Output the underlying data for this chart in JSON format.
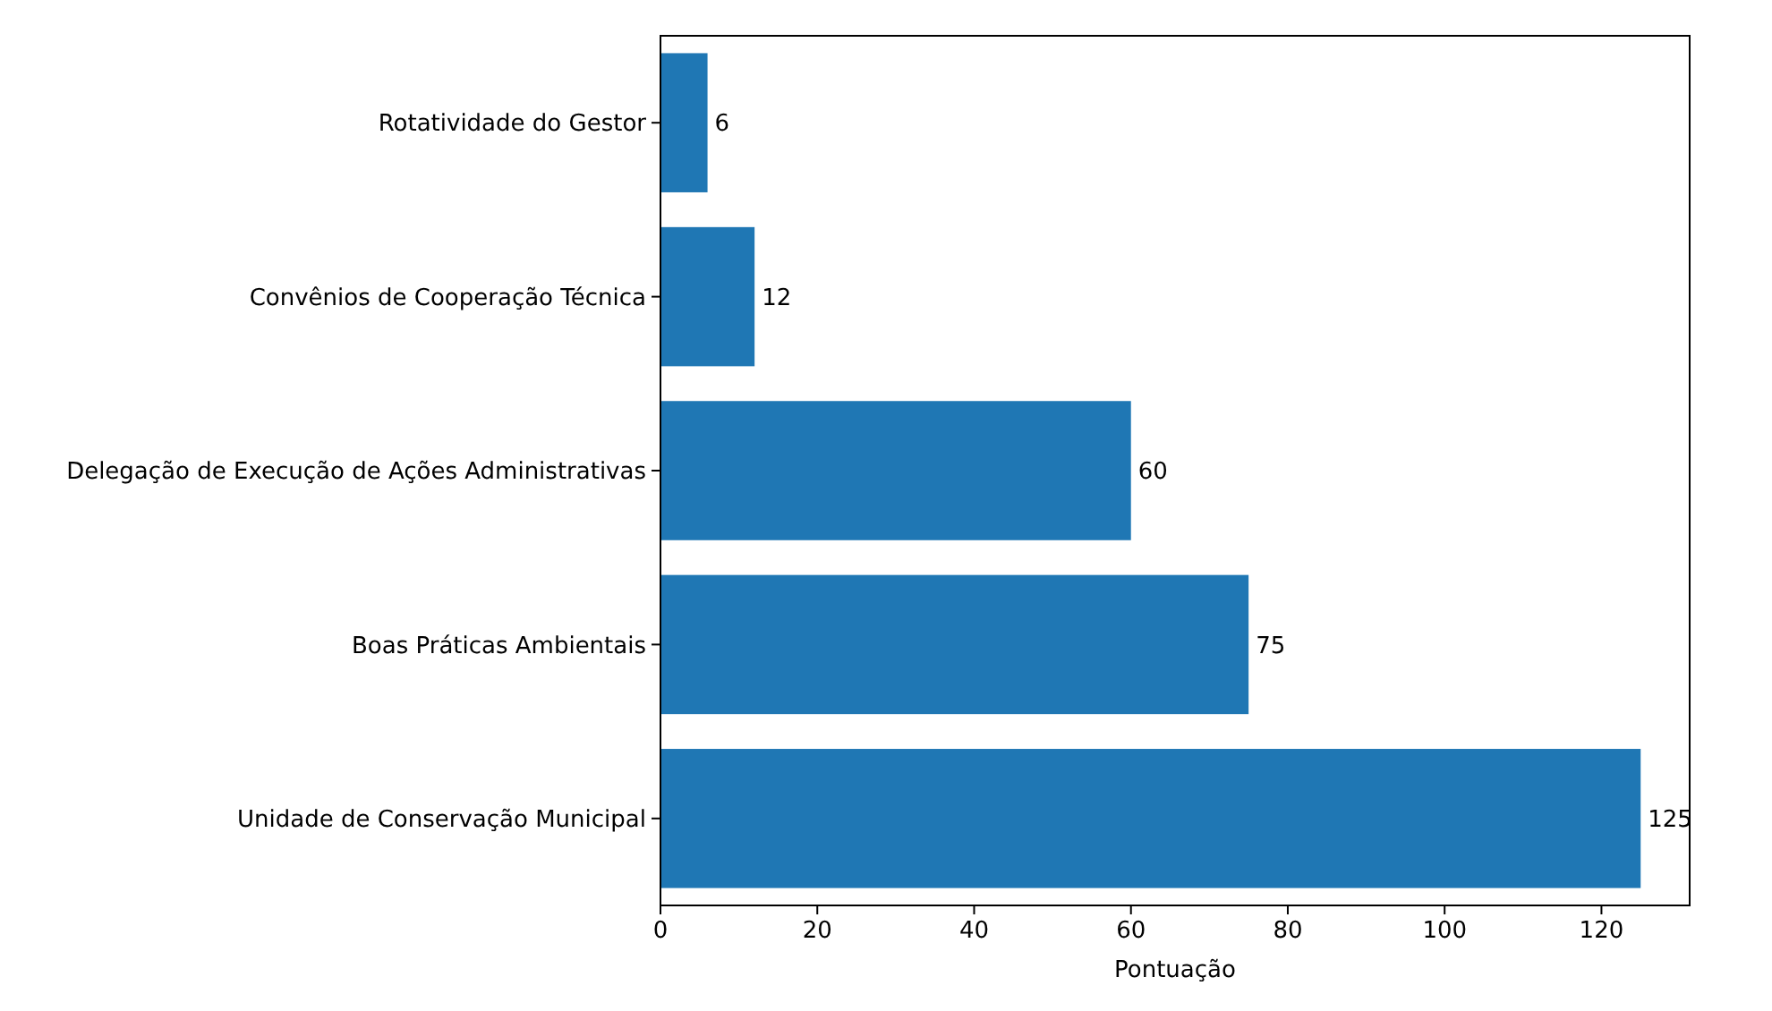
{
  "chart_data": {
    "type": "bar",
    "orientation": "horizontal",
    "xlabel": "Pontuação",
    "categories": [
      "Rotatividade do Gestor",
      "Convênios de Cooperação Técnica",
      "Delegação de Execução de Ações Administrativas",
      "Boas Práticas Ambientais",
      "Unidade de Conservação Municipal"
    ],
    "values": [
      6,
      12,
      60,
      75,
      125
    ],
    "color": "#1f77b4",
    "xlim": [
      0,
      131.25
    ],
    "xticks": [
      0,
      20,
      40,
      60,
      80,
      100,
      120
    ],
    "data_labels": true
  }
}
